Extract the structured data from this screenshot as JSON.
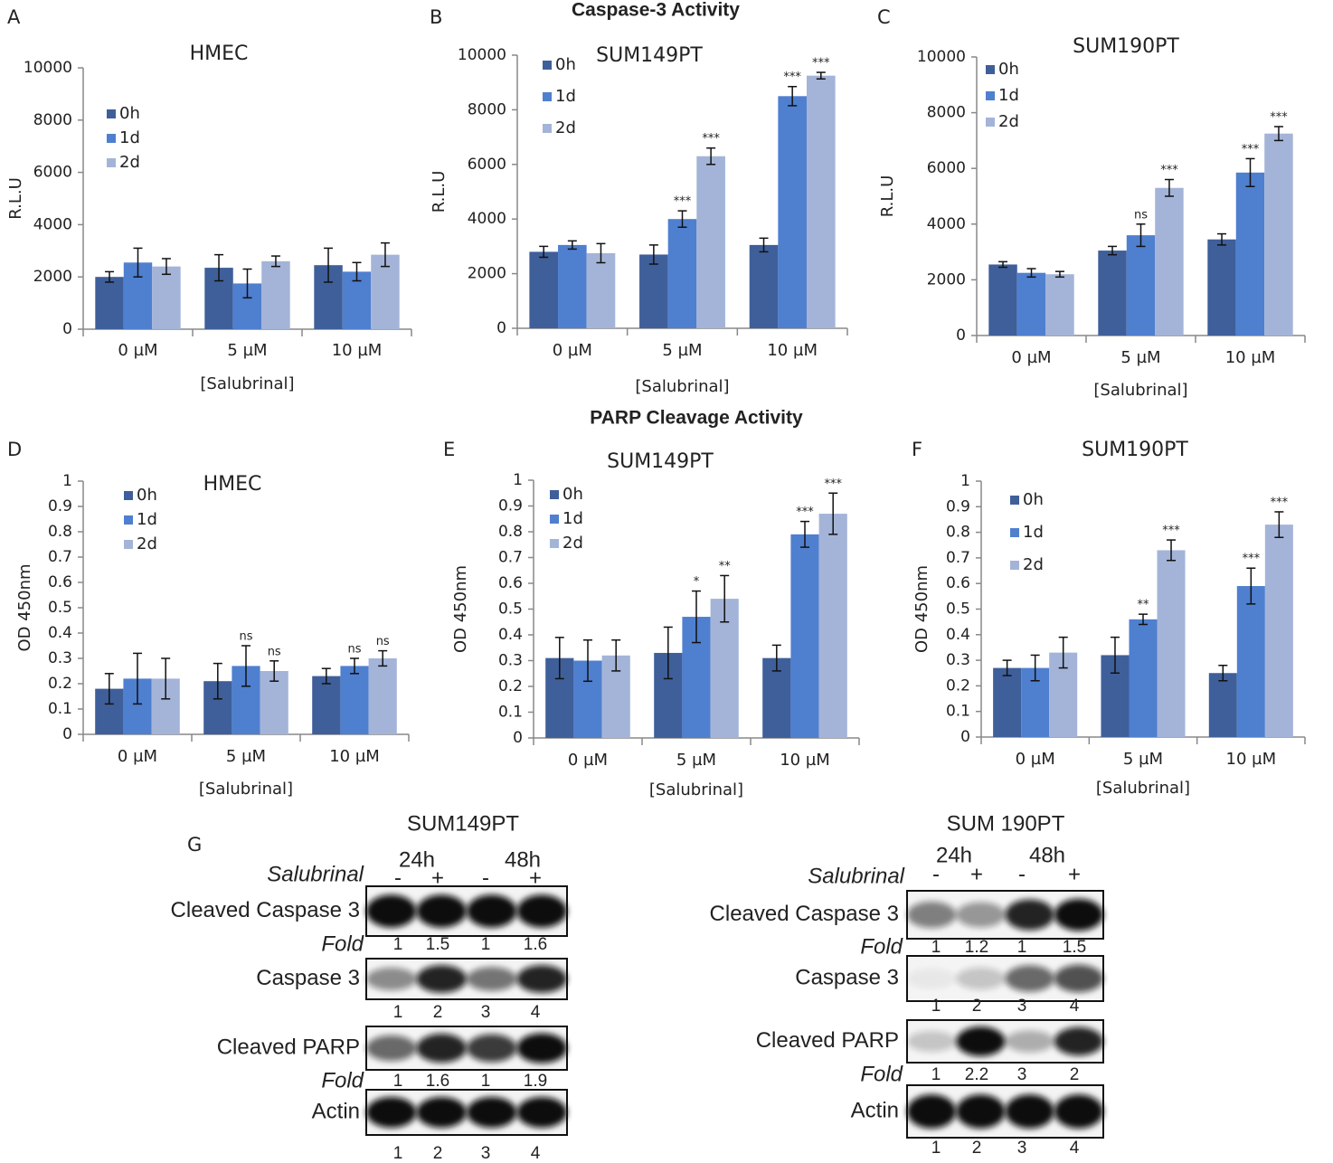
{
  "section_titles": [
    "Caspase-3 Activity",
    "PARP Cleavage Activity"
  ],
  "chart_data": [
    {
      "type": "bar",
      "panel": "A",
      "title": "HMEC",
      "xlabel": "[Salubrinal]",
      "ylabel": "R.L.U",
      "categories": [
        "0 µM",
        "5 µM",
        "10 µM"
      ],
      "ylim": [
        0,
        10000
      ],
      "yticks": [
        0,
        2000,
        4000,
        6000,
        8000,
        10000
      ],
      "series": [
        {
          "name": "0h",
          "color": "#3f5f9a",
          "values": [
            2000,
            2350,
            2450
          ],
          "errors": [
            200,
            500,
            650
          ],
          "sig": [
            null,
            null,
            null
          ]
        },
        {
          "name": "1d",
          "color": "#4f7fcf",
          "values": [
            2550,
            1750,
            2200
          ],
          "errors": [
            550,
            550,
            350
          ],
          "sig": [
            null,
            null,
            null
          ]
        },
        {
          "name": "2d",
          "color": "#a4b4d8",
          "values": [
            2400,
            2600,
            2850
          ],
          "errors": [
            300,
            200,
            450
          ],
          "sig": [
            null,
            null,
            null
          ]
        }
      ]
    },
    {
      "type": "bar",
      "panel": "B",
      "title": "SUM149PT",
      "xlabel": "[Salubrinal]",
      "ylabel": "R.L.U",
      "categories": [
        "0 µM",
        "5 µM",
        "10 µM"
      ],
      "ylim": [
        0,
        10000
      ],
      "yticks": [
        0,
        2000,
        4000,
        6000,
        8000,
        10000
      ],
      "series": [
        {
          "name": "0h",
          "color": "#3f5f9a",
          "values": [
            2800,
            2700,
            3050
          ],
          "errors": [
            200,
            350,
            250
          ],
          "sig": [
            null,
            null,
            null
          ]
        },
        {
          "name": "1d",
          "color": "#4f7fcf",
          "values": [
            3050,
            4000,
            8500
          ],
          "errors": [
            150,
            300,
            350
          ],
          "sig": [
            null,
            "***",
            "***"
          ]
        },
        {
          "name": "2d",
          "color": "#a4b4d8",
          "values": [
            2750,
            6300,
            9250
          ],
          "errors": [
            350,
            300,
            120
          ],
          "sig": [
            null,
            "***",
            "***"
          ]
        }
      ]
    },
    {
      "type": "bar",
      "panel": "C",
      "title": "SUM190PT",
      "xlabel": "[Salubrinal]",
      "ylabel": "R.L.U",
      "categories": [
        "0 µM",
        "5 µM",
        "10 µM"
      ],
      "ylim": [
        0,
        10000
      ],
      "yticks": [
        0,
        2000,
        4000,
        6000,
        8000,
        10000
      ],
      "series": [
        {
          "name": "0h",
          "color": "#3f5f9a",
          "values": [
            2550,
            3050,
            3450
          ],
          "errors": [
            100,
            150,
            200
          ],
          "sig": [
            null,
            null,
            null
          ]
        },
        {
          "name": "1d",
          "color": "#4f7fcf",
          "values": [
            2250,
            3600,
            5850
          ],
          "errors": [
            150,
            400,
            500
          ],
          "sig": [
            null,
            "ns",
            "***"
          ]
        },
        {
          "name": "2d",
          "color": "#a4b4d8",
          "values": [
            2200,
            5300,
            7250
          ],
          "errors": [
            100,
            300,
            250
          ],
          "sig": [
            null,
            "***",
            "***"
          ]
        }
      ]
    },
    {
      "type": "bar",
      "panel": "D",
      "title": "HMEC",
      "xlabel": "[Salubrinal]",
      "ylabel": "OD 450nm",
      "categories": [
        "0 µM",
        "5 µM",
        "10 µM"
      ],
      "ylim": [
        0,
        1
      ],
      "yticks": [
        0,
        0.1,
        0.2,
        0.3,
        0.4,
        0.5,
        0.6,
        0.7,
        0.8,
        0.9,
        1
      ],
      "series": [
        {
          "name": "0h",
          "color": "#3f5f9a",
          "values": [
            0.18,
            0.21,
            0.23
          ],
          "errors": [
            0.06,
            0.07,
            0.03
          ],
          "sig": [
            null,
            null,
            null
          ]
        },
        {
          "name": "1d",
          "color": "#4f7fcf",
          "values": [
            0.22,
            0.27,
            0.27
          ],
          "errors": [
            0.1,
            0.08,
            0.03
          ],
          "sig": [
            null,
            "ns",
            "ns"
          ]
        },
        {
          "name": "2d",
          "color": "#a4b4d8",
          "values": [
            0.22,
            0.25,
            0.3
          ],
          "errors": [
            0.08,
            0.04,
            0.03
          ],
          "sig": [
            null,
            "ns",
            "ns"
          ]
        }
      ]
    },
    {
      "type": "bar",
      "panel": "E",
      "title": "SUM149PT",
      "xlabel": "[Salubrinal]",
      "ylabel": "OD 450nm",
      "categories": [
        "0 µM",
        "5 µM",
        "10 µM"
      ],
      "ylim": [
        0,
        1
      ],
      "yticks": [
        0,
        0.1,
        0.2,
        0.3,
        0.4,
        0.5,
        0.6,
        0.7,
        0.8,
        0.9,
        1
      ],
      "series": [
        {
          "name": "0h",
          "color": "#3f5f9a",
          "values": [
            0.31,
            0.33,
            0.31
          ],
          "errors": [
            0.08,
            0.1,
            0.05
          ],
          "sig": [
            null,
            null,
            null
          ]
        },
        {
          "name": "1d",
          "color": "#4f7fcf",
          "values": [
            0.3,
            0.47,
            0.79
          ],
          "errors": [
            0.08,
            0.1,
            0.05
          ],
          "sig": [
            null,
            "*",
            "***"
          ]
        },
        {
          "name": "2d",
          "color": "#a4b4d8",
          "values": [
            0.32,
            0.54,
            0.87
          ],
          "errors": [
            0.06,
            0.09,
            0.08
          ],
          "sig": [
            null,
            "**",
            "***"
          ]
        }
      ]
    },
    {
      "type": "bar",
      "panel": "F",
      "title": "SUM190PT",
      "xlabel": "[Salubrinal]",
      "ylabel": "OD 450nm",
      "categories": [
        "0 µM",
        "5 µM",
        "10 µM"
      ],
      "ylim": [
        0,
        1
      ],
      "yticks": [
        0,
        0.1,
        0.2,
        0.3,
        0.4,
        0.5,
        0.6,
        0.7,
        0.8,
        0.9,
        1
      ],
      "series": [
        {
          "name": "0h",
          "color": "#3f5f9a",
          "values": [
            0.27,
            0.32,
            0.25
          ],
          "errors": [
            0.03,
            0.07,
            0.03
          ],
          "sig": [
            null,
            null,
            null
          ]
        },
        {
          "name": "1d",
          "color": "#4f7fcf",
          "values": [
            0.27,
            0.46,
            0.59
          ],
          "errors": [
            0.05,
            0.02,
            0.07
          ],
          "sig": [
            null,
            "**",
            "***"
          ]
        },
        {
          "name": "2d",
          "color": "#a4b4d8",
          "values": [
            0.33,
            0.73,
            0.83
          ],
          "errors": [
            0.06,
            0.04,
            0.05
          ],
          "sig": [
            null,
            "***",
            "***"
          ]
        }
      ]
    }
  ],
  "blot_panel": "G",
  "blots": [
    {
      "title": "SUM149PT",
      "timepoints": [
        "24h",
        "48h"
      ],
      "treatment": "Salubrinal",
      "signs": [
        "-",
        "+",
        "-",
        "+"
      ],
      "fold_label": "Fold",
      "rows": [
        {
          "label": "Cleaved Caspase 3",
          "fold": [
            1,
            1.5,
            1,
            1.6
          ]
        },
        {
          "label": "Caspase 3",
          "lanes": [
            1,
            2,
            3,
            4
          ]
        },
        {
          "label": "Cleaved PARP",
          "fold": [
            1,
            1.6,
            1,
            1.9
          ]
        },
        {
          "label": "Actin",
          "lanes": [
            1,
            2,
            3,
            4
          ]
        }
      ]
    },
    {
      "title": "SUM 190PT",
      "timepoints": [
        "24h",
        "48h"
      ],
      "treatment": "Salubrinal",
      "signs": [
        "-",
        "+",
        "-",
        "+"
      ],
      "fold_label": "Fold",
      "rows": [
        {
          "label": "Cleaved Caspase 3",
          "fold": [
            1,
            1.2,
            1,
            1.5
          ]
        },
        {
          "label": "Caspase 3",
          "lanes": [
            1,
            2,
            3,
            4
          ]
        },
        {
          "label": "Cleaved PARP",
          "fold": [
            1,
            2.2,
            3,
            2
          ]
        },
        {
          "label": "Actin",
          "lanes": [
            1,
            2,
            3,
            4
          ]
        }
      ]
    }
  ]
}
